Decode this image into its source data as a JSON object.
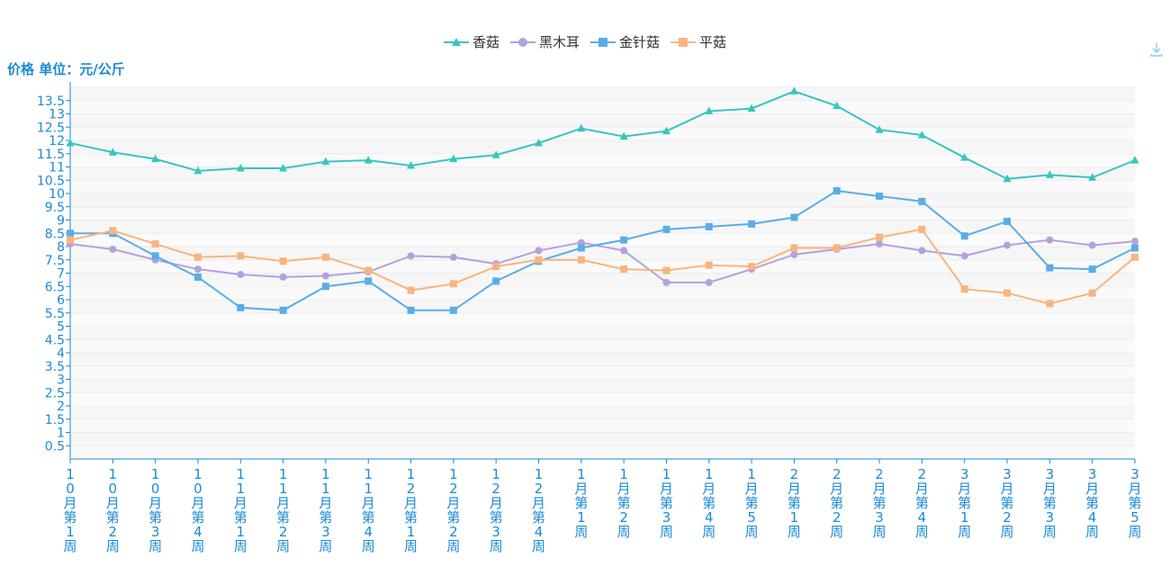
{
  "toolbar": {
    "download_icon": "download-icon"
  },
  "chart_data": {
    "type": "line",
    "y_axis_name": "价格 单位：元/公斤",
    "ylim": [
      0,
      14
    ],
    "grid": true,
    "legend_position": "top-center",
    "categories": [
      "10月第1周",
      "10月第2周",
      "10月第3周",
      "10月第4周",
      "11月第1周",
      "11月第2周",
      "11月第3周",
      "11月第4周",
      "12月第1周",
      "12月第2周",
      "12月第3周",
      "12月第4周",
      "1月第1周",
      "1月第2周",
      "1月第3周",
      "1月第4周",
      "1月第5周",
      "2月第1周",
      "2月第2周",
      "2月第3周",
      "2月第4周",
      "3月第1周",
      "3月第2周",
      "3月第3周",
      "3月第4周",
      "3月第5周"
    ],
    "yticks": [
      "0.5",
      "1",
      "1.5",
      "2",
      "2.5",
      "3",
      "3.5",
      "4",
      "4.5",
      "5",
      "5.5",
      "6",
      "6.5",
      "7",
      "7.5",
      "8",
      "8.5",
      "9",
      "9.5",
      "10",
      "10.5",
      "11",
      "11.5",
      "12",
      "12.5",
      "13",
      "13.5"
    ],
    "series": [
      {
        "name": "香菇",
        "color": "#36c5c2",
        "marker": "triangle",
        "values": [
          11.9,
          11.55,
          11.3,
          10.85,
          10.95,
          10.95,
          11.2,
          11.25,
          11.05,
          11.3,
          11.45,
          11.9,
          12.45,
          12.15,
          12.35,
          13.1,
          13.2,
          13.85,
          13.3,
          12.4,
          12.2,
          11.35,
          10.55,
          10.7,
          10.6,
          11.25
        ]
      },
      {
        "name": "黑木耳",
        "color": "#b3a1de",
        "marker": "circle",
        "values": [
          8.1,
          7.9,
          7.5,
          7.15,
          6.95,
          6.85,
          6.9,
          7.05,
          7.65,
          7.6,
          7.35,
          7.85,
          8.15,
          7.85,
          6.65,
          6.65,
          7.15,
          7.7,
          7.9,
          8.1,
          7.85,
          7.65,
          8.05,
          8.25,
          8.05,
          8.2
        ]
      },
      {
        "name": "金针菇",
        "color": "#59ade8",
        "marker": "square",
        "values": [
          8.5,
          8.5,
          7.65,
          6.85,
          5.7,
          5.6,
          6.5,
          6.7,
          5.6,
          5.6,
          6.7,
          7.45,
          7.95,
          8.25,
          8.65,
          8.75,
          8.85,
          9.1,
          10.1,
          9.9,
          9.7,
          8.4,
          8.95,
          7.2,
          7.15,
          7.95
        ]
      },
      {
        "name": "平菇",
        "color": "#f9b47d",
        "marker": "square",
        "values": [
          8.25,
          8.6,
          8.1,
          7.6,
          7.65,
          7.45,
          7.6,
          7.1,
          6.35,
          6.6,
          7.25,
          7.5,
          7.5,
          7.15,
          7.1,
          7.3,
          7.25,
          7.95,
          7.95,
          8.35,
          8.65,
          6.4,
          6.25,
          5.85,
          6.25,
          7.6
        ]
      }
    ]
  }
}
